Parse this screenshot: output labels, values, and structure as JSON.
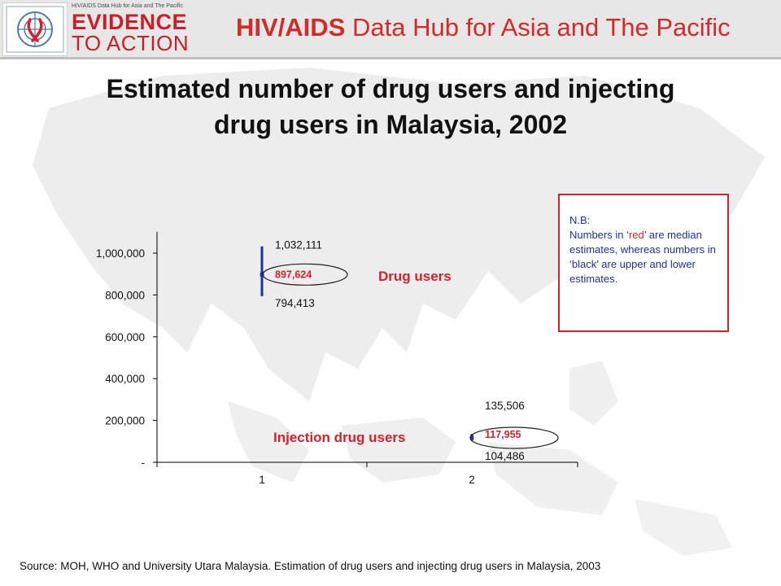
{
  "header": {
    "logo_tagline": "HIV/AIDS Data Hub for Asia and The Pacific",
    "logo_line1": "EVIDENCE",
    "logo_line2": "TO ACTION",
    "hub_title_bold": "HIV/AIDS",
    "hub_title_rest": " Data Hub for Asia and The Pacific"
  },
  "title_line1": "Estimated number of drug users and injecting",
  "title_line2": "drug users in Malaysia,  2002",
  "note": {
    "heading": "N.B:",
    "line1_pre": "Numbers in ‘",
    "line1_red": "red",
    "line1_post": "’ are median estimates, whereas numbers in ‘black’ are upper and lower estimates."
  },
  "source": "Source: MOH,  WHO and University Utara Malaysia. Estimation of drug users and injecting drug users in Malaysia, 2003",
  "colors": {
    "red": "#d6202a",
    "blue": "#1f2fa8",
    "header_red": "#d12b2b"
  },
  "chart_data": {
    "type": "scatter",
    "subtype": "high-low-median",
    "categories": [
      "1",
      "2"
    ],
    "ylim": [
      0,
      1100000
    ],
    "y_ticks": [
      0,
      200000,
      400000,
      600000,
      800000,
      1000000
    ],
    "y_tick_labels": [
      "-",
      "200,000",
      "400,000",
      "600,000",
      "800,000",
      "1,000,000"
    ],
    "points": [
      {
        "category": "1",
        "label": "Drug users",
        "high": 1032111,
        "median": 897624,
        "low": 794413,
        "high_label": "1,032,111",
        "median_label": "897,624",
        "low_label": "794,413"
      },
      {
        "category": "2",
        "label": "Injection drug users",
        "high": 135506,
        "median": 117955,
        "low": 104486,
        "high_label": "135,506",
        "median_label": "117,955",
        "low_label": "104,486"
      }
    ]
  }
}
